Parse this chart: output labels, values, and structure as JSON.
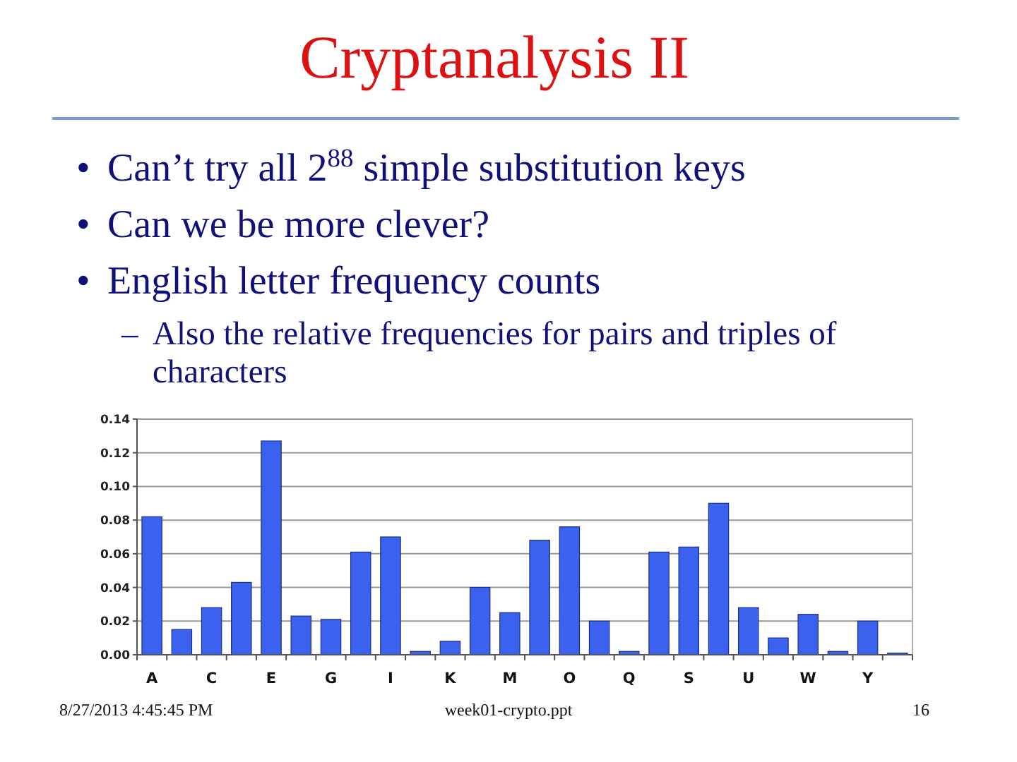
{
  "chart_data": {
    "type": "bar",
    "title": "Cryptanalysis II",
    "annotations": [
      "• Can’t try all 2$^{88}$ simple substitution keys",
      "• Can we be more clever?",
      "• English letter frequency counts",
      "– Also the relative frequencies for pairs and triples of characters",
      "8/27/2013 4:45:45 PM",
      "week01-crypto.ppt",
      "16"
    ],
    "categories": [
      "A",
      null,
      "C",
      null,
      "E",
      null,
      "G",
      null,
      "I",
      null,
      "K",
      null,
      "M",
      null,
      "O",
      null,
      "Q",
      null,
      "S",
      null,
      "U",
      null,
      "W",
      null,
      "Y",
      null
    ],
    "values": [
      0.082,
      0.015,
      0.028,
      0.043,
      0.127,
      0.023,
      0.021,
      0.061,
      0.07,
      0.002,
      0.008,
      0.04,
      0.025,
      0.068,
      0.076,
      0.02,
      0.002,
      0.061,
      0.064,
      0.09,
      0.028,
      0.01,
      0.024,
      0.002,
      0.02,
      0.001
    ],
    "color": "#3a62ee",
    "ylim": [
      0,
      0.14
    ],
    "yticks": [
      {
        "value": 0,
        "label": "0.00"
      },
      {
        "value": 0.02,
        "label": "0.02"
      },
      {
        "value": 0.04,
        "label": "0.04"
      },
      {
        "value": 0.06,
        "label": "0.06"
      },
      {
        "value": 0.08,
        "label": "0.08"
      },
      {
        "value": 0.1,
        "label": "0.10"
      },
      {
        "value": 0.12,
        "label": "0.12"
      },
      {
        "value": 0.14,
        "label": "0.14"
      }
    ],
    "grid": "y"
  }
}
